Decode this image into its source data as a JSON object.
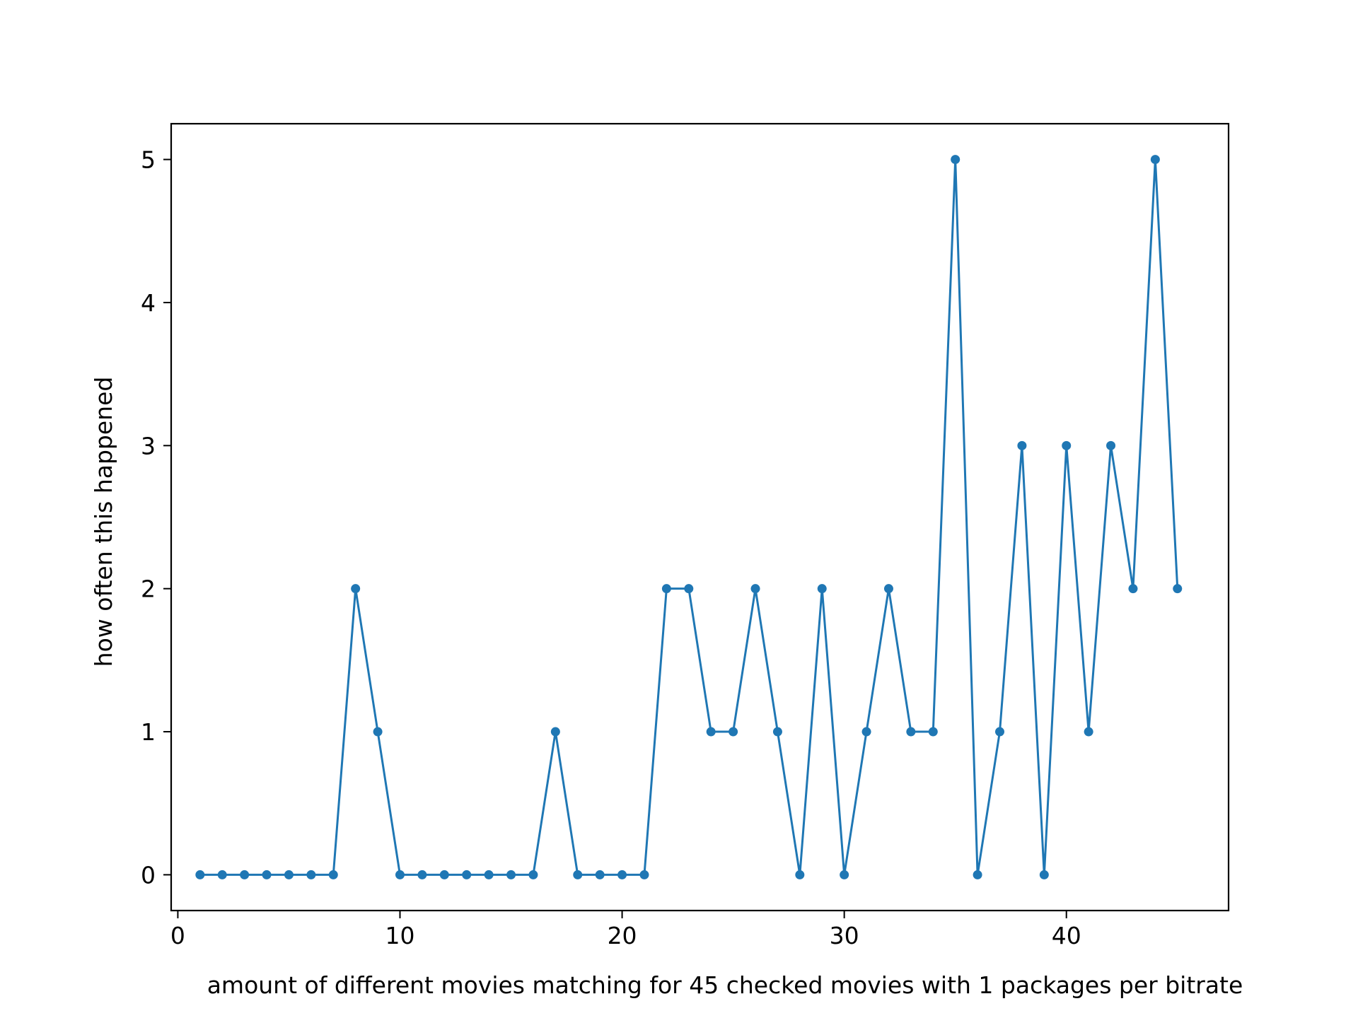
{
  "chart_data": {
    "type": "line",
    "title": "",
    "xlabel": "amount of different movies matching for 45 checked movies with 1 packages per bitrate",
    "ylabel": "how often this happened",
    "xlim": [
      -0.3,
      47.3
    ],
    "ylim": [
      -0.25,
      5.25
    ],
    "xticks": [
      0,
      10,
      20,
      30,
      40
    ],
    "yticks": [
      0,
      1,
      2,
      3,
      4,
      5
    ],
    "grid": false,
    "legend": false,
    "colors": {
      "series": "#1f77b4",
      "axes": "#000000"
    },
    "series": [
      {
        "marker": "circle",
        "x": [
          1,
          2,
          3,
          4,
          5,
          6,
          7,
          8,
          9,
          10,
          11,
          12,
          13,
          14,
          15,
          16,
          17,
          18,
          19,
          20,
          21,
          22,
          23,
          24,
          25,
          26,
          27,
          28,
          29,
          30,
          31,
          32,
          33,
          34,
          35,
          36,
          37,
          38,
          39,
          40,
          41,
          42,
          43,
          44,
          45
        ],
        "y": [
          0,
          0,
          0,
          0,
          0,
          0,
          0,
          2,
          1,
          0,
          0,
          0,
          0,
          0,
          0,
          0,
          1,
          0,
          0,
          0,
          0,
          2,
          2,
          1,
          1,
          2,
          1,
          0,
          2,
          0,
          1,
          2,
          1,
          1,
          5,
          0,
          1,
          3,
          0,
          3,
          1,
          3,
          2,
          5,
          2
        ]
      }
    ]
  }
}
